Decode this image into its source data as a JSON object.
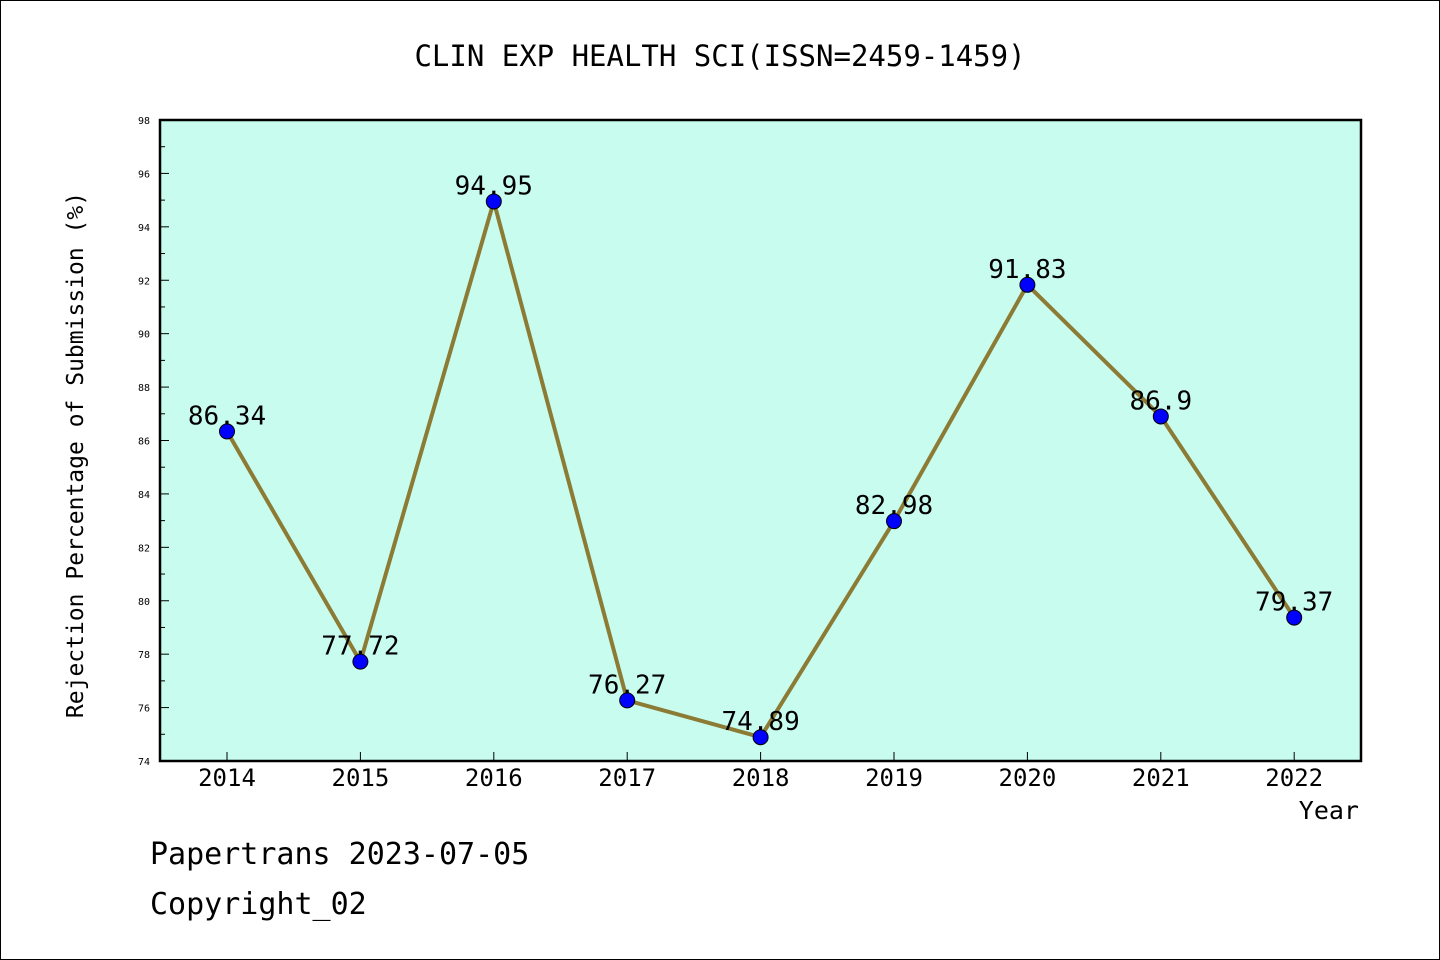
{
  "chart_data": {
    "type": "line",
    "title": "CLIN EXP HEALTH SCI(ISSN=2459-1459)",
    "xlabel": "Year",
    "ylabel": "Rejection Percentage of Submission (%)",
    "categories": [
      "2014",
      "2015",
      "2016",
      "2017",
      "2018",
      "2019",
      "2020",
      "2021",
      "2022"
    ],
    "values": [
      86.34,
      77.72,
      94.95,
      76.27,
      74.89,
      82.98,
      91.83,
      86.9,
      79.37
    ],
    "value_labels": [
      "86.34",
      "77.72",
      "94.95",
      "76.27",
      "74.89",
      "82.98",
      "91.83",
      "86.9",
      "79.37"
    ],
    "ylim": [
      74,
      98
    ],
    "yticks": [
      "74",
      "76",
      "78",
      "80",
      "82",
      "84",
      "86",
      "88",
      "90",
      "92",
      "94",
      "96",
      "98"
    ],
    "grid": false,
    "colors": {
      "plot_background": "#c8fcee",
      "line": "#8c7b35",
      "marker": "#0000ff"
    }
  },
  "footer": {
    "line1": "Papertrans 2023-07-05",
    "line2": "Copyright_02"
  }
}
